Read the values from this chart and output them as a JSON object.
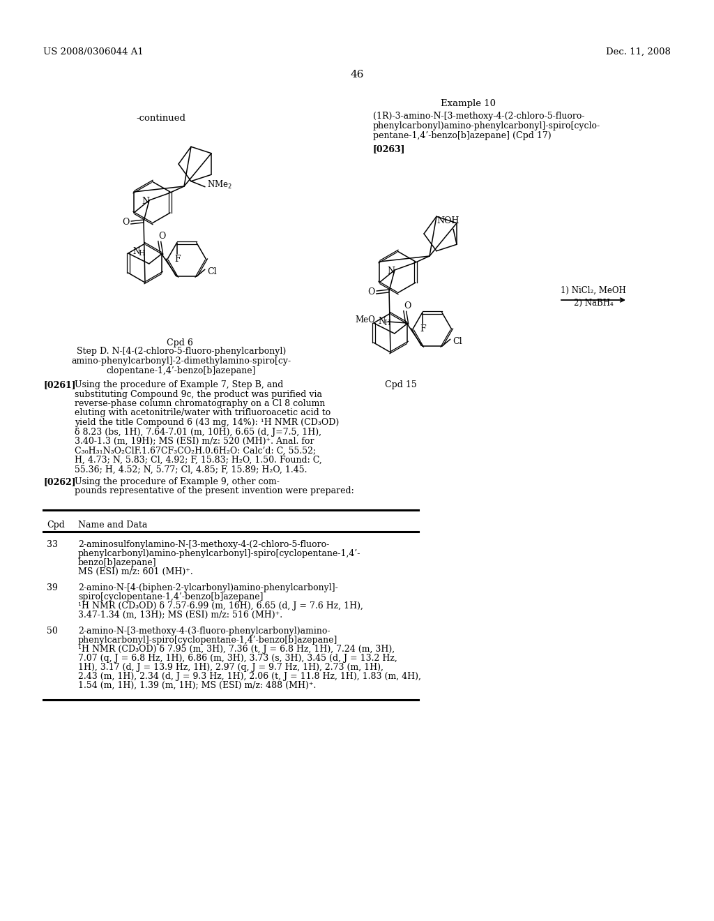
{
  "background_color": "#ffffff",
  "page_number": "46",
  "patent_number": "US 2008/0306044 A1",
  "patent_date": "Dec. 11, 2008",
  "continued_label": "-continued",
  "example10_title": "Example 10",
  "example10_line1": "(1R)-3-amino-N-[3-methoxy-4-(2-chloro-5-fluoro-",
  "example10_line2": "phenylcarbonyl)amino-phenylcarbonyl]-spiro[cyclo-",
  "example10_line3": "pentane-1,4’-benzo[b]azepane] (Cpd 17)",
  "example10_ref": "[0263]",
  "cpd6_label": "Cpd 6",
  "cpd15_label": "Cpd 15",
  "arrow_label1": "1) NiCl₂, MeOH",
  "arrow_label2": "2) NaBH₄",
  "stepD_line1": "Step D. N-[4-(2-chloro-5-fluoro-phenylcarbonyl)",
  "stepD_line2": "amino-phenylcarbonyl]-2-dimethylamino-spiro[cy-",
  "stepD_line3": "clopentane-1,4’-benzo[b]azepane]",
  "p261_label": "[0261]",
  "p261_lines": [
    "Using the procedure of Example 7, Step B, and",
    "substituting Compound 9c, the product was purified via",
    "reverse-phase column chromatography on a Cl 8 column",
    "eluting with acetonitrile/water with trifluoroacetic acid to",
    "yield the title Compound 6 (43 mg, 14%): ¹H NMR (CD₃OD)",
    "δ 8.23 (bs, 1H), 7.64-7.01 (m, 10H), 6.65 (d, J=7.5, 1H),",
    "3.40-1.3 (m, 19H); MS (ESI) m/z: 520 (MH)⁺. Anal. for",
    "C₃₀H₃₁N₃O₂ClF.1.67CF₃CO₂H.0.6H₂O: Calc’d: C, 55.52;",
    "H, 4.73; N, 5.83; Cl, 4.92; F, 15.83; H₂O, 1.50. Found: C,",
    "55.36; H, 4.52; N, 5.77; Cl, 4.85; F, 15.89; H₂O, 1.45."
  ],
  "p262_label": "[0262]",
  "p262_line1": "Using the procedure of Example 9, other com-",
  "p262_line2": "pounds representative of the present invention were prepared:",
  "table_cpd_header": "Cpd",
  "table_name_header": "Name and Data",
  "row33_cpd": "33",
  "row33_lines": [
    "2-aminosulfonylamino-N-[3-methoxy-4-(2-chloro-5-fluoro-",
    "phenylcarbonyl)amino-phenylcarbonyl]-spiro[cyclopentane-1,4’-",
    "benzo[b]azepane]",
    "MS (ESI) m/z: 601 (MH)⁺."
  ],
  "row39_cpd": "39",
  "row39_lines": [
    "2-amino-N-[4-(biphen-2-ylcarbonyl)amino-phenylcarbonyl]-",
    "spiro[cyclopentane-1,4’-benzo[b]azepane]",
    "¹H NMR (CD₃OD) δ 7.57-6.99 (m, 16H), 6.65 (d, J = 7.6 Hz, 1H),",
    "3.47-1.34 (m, 13H); MS (ESI) m/z: 516 (MH)⁺."
  ],
  "row50_cpd": "50",
  "row50_lines": [
    "2-amino-N-[3-methoxy-4-(3-fluoro-phenylcarbonyl)amino-",
    "phenylcarbonyl]-spiro[cyclopentane-1,4’-benzo[b]azepane]",
    "¹H NMR (CD₃OD) δ 7.95 (m, 3H), 7.36 (t, J = 6.8 Hz, 1H), 7.24 (m, 3H),",
    "7.07 (q, J = 6.8 Hz, 1H), 6.86 (m, 3H), 3.73 (s, 3H), 3.45 (d, J = 13.2 Hz,",
    "1H), 3.17 (d, J = 13.9 Hz, 1H), 2.97 (q, J = 9.7 Hz, 1H), 2.73 (m, 1H),",
    "2.43 (m, 1H), 2.34 (d, J = 9.3 Hz, 1H), 2.06 (t, J = 11.8 Hz, 1H), 1.83 (m, 4H),",
    "1.54 (m, 1H), 1.39 (m, 1H); MS (ESI) m/z: 488 (MH)⁺."
  ]
}
